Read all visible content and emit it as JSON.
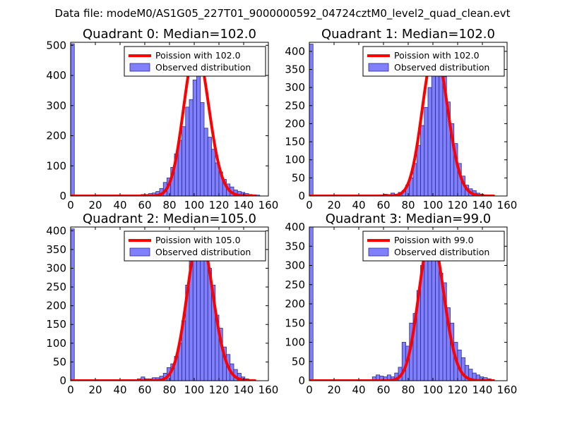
{
  "suptitle": "Data file: modeM0/AS1G05_227T01_9000000592_04724cztM0_level2_quad_clean.evt",
  "colors": {
    "bar_fill": "#8080ff",
    "bar_edge": "#2a2a8a",
    "curve": "#ff0000",
    "axis": "#000000"
  },
  "chart_data": [
    {
      "type": "bar",
      "title": "Quadrant 0: Median=102.0",
      "xlim": [
        0,
        160
      ],
      "ylim": [
        0,
        510
      ],
      "xticks": [
        "0",
        "20",
        "40",
        "60",
        "80",
        "100",
        "120",
        "140",
        "160"
      ],
      "xtick_values": [
        0,
        20,
        40,
        60,
        80,
        100,
        120,
        140,
        160
      ],
      "yticks": [
        "0",
        "100",
        "200",
        "300",
        "400",
        "500"
      ],
      "ytick_values": [
        0,
        100,
        200,
        300,
        400,
        500
      ],
      "legend": {
        "placement": "top-right",
        "curve_label": "Poission with 102.0",
        "bars_label": "Observed distribution"
      },
      "poisson_mean": 102.0,
      "curve_peak": 490,
      "bin_width": 3,
      "bins": [
        {
          "x": 0,
          "y": 505
        },
        {
          "x": 57,
          "y": 5
        },
        {
          "x": 60,
          "y": 5
        },
        {
          "x": 63,
          "y": 8
        },
        {
          "x": 66,
          "y": 10
        },
        {
          "x": 69,
          "y": 15
        },
        {
          "x": 72,
          "y": 25
        },
        {
          "x": 75,
          "y": 45
        },
        {
          "x": 78,
          "y": 60
        },
        {
          "x": 81,
          "y": 95
        },
        {
          "x": 84,
          "y": 140
        },
        {
          "x": 87,
          "y": 185
        },
        {
          "x": 90,
          "y": 230
        },
        {
          "x": 93,
          "y": 295
        },
        {
          "x": 96,
          "y": 320
        },
        {
          "x": 99,
          "y": 385
        },
        {
          "x": 102,
          "y": 485
        },
        {
          "x": 105,
          "y": 310
        },
        {
          "x": 108,
          "y": 225
        },
        {
          "x": 111,
          "y": 195
        },
        {
          "x": 114,
          "y": 155
        },
        {
          "x": 117,
          "y": 110
        },
        {
          "x": 120,
          "y": 80
        },
        {
          "x": 123,
          "y": 55
        },
        {
          "x": 126,
          "y": 40
        },
        {
          "x": 129,
          "y": 30
        },
        {
          "x": 132,
          "y": 20
        },
        {
          "x": 135,
          "y": 15
        },
        {
          "x": 138,
          "y": 12
        },
        {
          "x": 141,
          "y": 8
        },
        {
          "x": 144,
          "y": 5
        },
        {
          "x": 147,
          "y": 4
        },
        {
          "x": 150,
          "y": 3
        }
      ]
    },
    {
      "type": "bar",
      "title": "Quadrant 1: Median=102.0",
      "xlim": [
        0,
        160
      ],
      "ylim": [
        0,
        425
      ],
      "xticks": [
        "0",
        "20",
        "40",
        "60",
        "80",
        "100",
        "120",
        "140",
        "160"
      ],
      "xtick_values": [
        0,
        20,
        40,
        60,
        80,
        100,
        120,
        140,
        160
      ],
      "yticks": [
        "0",
        "50",
        "100",
        "150",
        "200",
        "250",
        "300",
        "350",
        "400"
      ],
      "ytick_values": [
        0,
        50,
        100,
        150,
        200,
        250,
        300,
        350,
        400
      ],
      "legend": {
        "placement": "top-right",
        "curve_label": "Poission with 102.0",
        "bars_label": "Observed distribution"
      },
      "poisson_mean": 102.0,
      "curve_peak": 405,
      "bin_width": 3,
      "bins": [
        {
          "x": 0,
          "y": 420
        },
        {
          "x": 60,
          "y": 5
        },
        {
          "x": 63,
          "y": 4
        },
        {
          "x": 66,
          "y": 8
        },
        {
          "x": 69,
          "y": 5
        },
        {
          "x": 72,
          "y": 10
        },
        {
          "x": 75,
          "y": 15
        },
        {
          "x": 78,
          "y": 30
        },
        {
          "x": 81,
          "y": 50
        },
        {
          "x": 84,
          "y": 90
        },
        {
          "x": 87,
          "y": 140
        },
        {
          "x": 90,
          "y": 195
        },
        {
          "x": 93,
          "y": 245
        },
        {
          "x": 96,
          "y": 300
        },
        {
          "x": 99,
          "y": 365
        },
        {
          "x": 102,
          "y": 385
        },
        {
          "x": 105,
          "y": 370
        },
        {
          "x": 108,
          "y": 330
        },
        {
          "x": 111,
          "y": 260
        },
        {
          "x": 114,
          "y": 200
        },
        {
          "x": 117,
          "y": 145
        },
        {
          "x": 120,
          "y": 90
        },
        {
          "x": 123,
          "y": 55
        },
        {
          "x": 126,
          "y": 30
        },
        {
          "x": 129,
          "y": 20
        },
        {
          "x": 132,
          "y": 15
        },
        {
          "x": 135,
          "y": 8
        },
        {
          "x": 138,
          "y": 5
        },
        {
          "x": 141,
          "y": 3
        }
      ]
    },
    {
      "type": "bar",
      "title": "Quadrant 2: Median=105.0",
      "xlim": [
        0,
        160
      ],
      "ylim": [
        0,
        410
      ],
      "xticks": [
        "0",
        "20",
        "40",
        "60",
        "80",
        "100",
        "120",
        "140",
        "160"
      ],
      "xtick_values": [
        0,
        20,
        40,
        60,
        80,
        100,
        120,
        140,
        160
      ],
      "yticks": [
        "0",
        "50",
        "100",
        "150",
        "200",
        "250",
        "300",
        "350",
        "400"
      ],
      "ytick_values": [
        0,
        50,
        100,
        150,
        200,
        250,
        300,
        350,
        400
      ],
      "legend": {
        "placement": "top-right",
        "curve_label": "Poission with 105.0",
        "bars_label": "Observed distribution"
      },
      "poisson_mean": 105.0,
      "curve_peak": 390,
      "bin_width": 3,
      "bins": [
        {
          "x": 0,
          "y": 405
        },
        {
          "x": 54,
          "y": 5
        },
        {
          "x": 57,
          "y": 10
        },
        {
          "x": 60,
          "y": 5
        },
        {
          "x": 63,
          "y": 5
        },
        {
          "x": 66,
          "y": 8
        },
        {
          "x": 69,
          "y": 8
        },
        {
          "x": 72,
          "y": 12
        },
        {
          "x": 75,
          "y": 20
        },
        {
          "x": 78,
          "y": 35
        },
        {
          "x": 81,
          "y": 45
        },
        {
          "x": 84,
          "y": 65
        },
        {
          "x": 87,
          "y": 100
        },
        {
          "x": 90,
          "y": 160
        },
        {
          "x": 93,
          "y": 255
        },
        {
          "x": 96,
          "y": 345
        },
        {
          "x": 99,
          "y": 365
        },
        {
          "x": 102,
          "y": 380
        },
        {
          "x": 105,
          "y": 360
        },
        {
          "x": 108,
          "y": 335
        },
        {
          "x": 111,
          "y": 300
        },
        {
          "x": 114,
          "y": 255
        },
        {
          "x": 117,
          "y": 175
        },
        {
          "x": 120,
          "y": 140
        },
        {
          "x": 123,
          "y": 90
        },
        {
          "x": 126,
          "y": 70
        },
        {
          "x": 129,
          "y": 45
        },
        {
          "x": 132,
          "y": 30
        },
        {
          "x": 135,
          "y": 20
        },
        {
          "x": 138,
          "y": 10
        },
        {
          "x": 141,
          "y": 5
        },
        {
          "x": 144,
          "y": 3
        }
      ]
    },
    {
      "type": "bar",
      "title": "Quadrant 3: Median=99.0",
      "xlim": [
        0,
        160
      ],
      "ylim": [
        0,
        400
      ],
      "xticks": [
        "0",
        "20",
        "40",
        "60",
        "80",
        "100",
        "120",
        "140",
        "160"
      ],
      "xtick_values": [
        0,
        20,
        40,
        60,
        80,
        100,
        120,
        140,
        160
      ],
      "yticks": [
        "0",
        "50",
        "100",
        "150",
        "200",
        "250",
        "300",
        "350",
        "400"
      ],
      "ytick_values": [
        0,
        50,
        100,
        150,
        200,
        250,
        300,
        350,
        400
      ],
      "legend": {
        "placement": "top-right",
        "curve_label": "Poission with 99.0",
        "bars_label": "Observed distribution"
      },
      "poisson_mean": 99.0,
      "curve_peak": 380,
      "bin_width": 3,
      "bins": [
        {
          "x": 0,
          "y": 400
        },
        {
          "x": 51,
          "y": 10
        },
        {
          "x": 54,
          "y": 15
        },
        {
          "x": 57,
          "y": 12
        },
        {
          "x": 60,
          "y": 10
        },
        {
          "x": 63,
          "y": 15
        },
        {
          "x": 66,
          "y": 10
        },
        {
          "x": 69,
          "y": 20
        },
        {
          "x": 72,
          "y": 35
        },
        {
          "x": 75,
          "y": 100
        },
        {
          "x": 78,
          "y": 90
        },
        {
          "x": 81,
          "y": 150
        },
        {
          "x": 84,
          "y": 175
        },
        {
          "x": 87,
          "y": 235
        },
        {
          "x": 90,
          "y": 300
        },
        {
          "x": 93,
          "y": 345
        },
        {
          "x": 96,
          "y": 360
        },
        {
          "x": 99,
          "y": 365
        },
        {
          "x": 102,
          "y": 360
        },
        {
          "x": 105,
          "y": 280
        },
        {
          "x": 108,
          "y": 255
        },
        {
          "x": 111,
          "y": 190
        },
        {
          "x": 114,
          "y": 150
        },
        {
          "x": 117,
          "y": 100
        },
        {
          "x": 120,
          "y": 80
        },
        {
          "x": 123,
          "y": 60
        },
        {
          "x": 126,
          "y": 40
        },
        {
          "x": 129,
          "y": 30
        },
        {
          "x": 132,
          "y": 20
        },
        {
          "x": 135,
          "y": 15
        },
        {
          "x": 138,
          "y": 10
        },
        {
          "x": 141,
          "y": 8
        },
        {
          "x": 144,
          "y": 5
        }
      ]
    }
  ]
}
